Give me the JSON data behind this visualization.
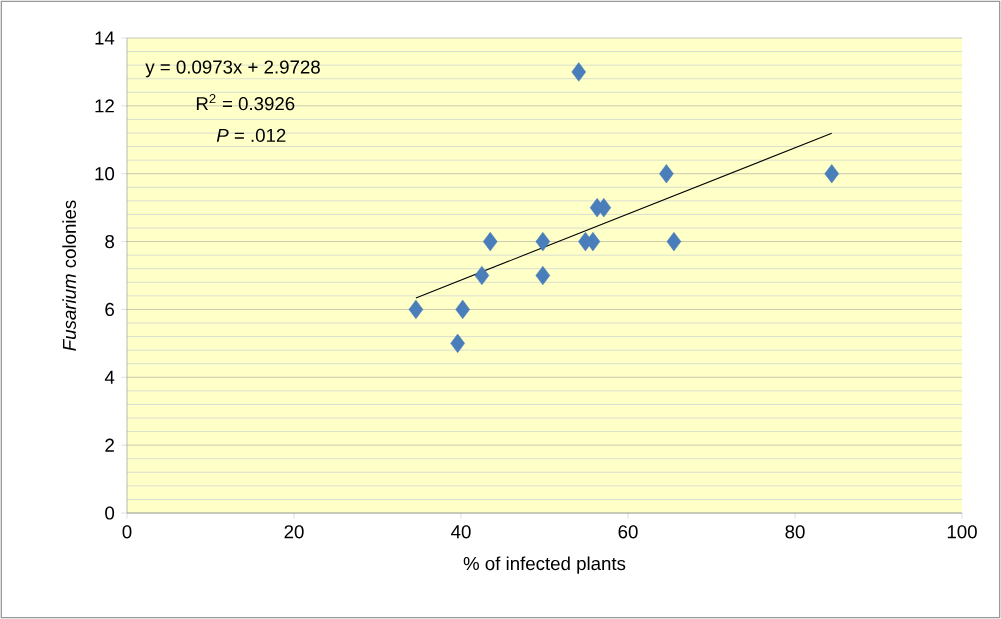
{
  "chart_data": {
    "type": "scatter",
    "xlabel": "% of infected plants",
    "ylabel": "*Fusarium* colonies",
    "x": [
      34.6,
      40.2,
      39.6,
      42.5,
      43.5,
      49.8,
      49.8,
      54.9,
      55.8,
      56.3,
      57.1,
      64.6,
      65.5,
      84.4,
      54.1
    ],
    "series": [
      {
        "color": "#4a7ebb",
        "marker": "diamond",
        "values": [
          6,
          6,
          5,
          7,
          8,
          8,
          7,
          8,
          8,
          9,
          9,
          10,
          8,
          10,
          13
        ]
      },
      {
        "type": "line",
        "color": "#000000",
        "marker": "none",
        "x": [
          34.6,
          84.4
        ],
        "values": [
          6.34,
          11.19
        ]
      }
    ],
    "annotations": [
      "y = 0.0973x + 2.9728",
      "R$^{2}$ = 0.3926",
      "*P* = .012"
    ],
    "xlim": [
      0,
      100
    ],
    "ylim": [
      0,
      14
    ],
    "xticks": [
      0,
      20,
      40,
      60,
      80,
      100
    ],
    "yticks": [
      0,
      2,
      4,
      6,
      8,
      10,
      12,
      14
    ],
    "grid": "y"
  }
}
